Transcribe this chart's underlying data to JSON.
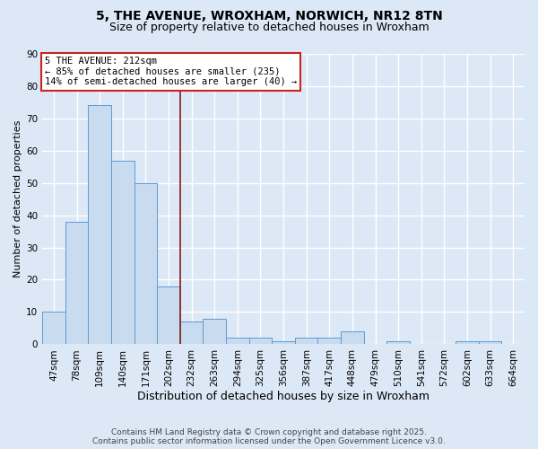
{
  "title1": "5, THE AVENUE, WROXHAM, NORWICH, NR12 8TN",
  "title2": "Size of property relative to detached houses in Wroxham",
  "xlabel": "Distribution of detached houses by size in Wroxham",
  "ylabel": "Number of detached properties",
  "categories": [
    "47sqm",
    "78sqm",
    "109sqm",
    "140sqm",
    "171sqm",
    "202sqm",
    "232sqm",
    "263sqm",
    "294sqm",
    "325sqm",
    "356sqm",
    "387sqm",
    "417sqm",
    "448sqm",
    "479sqm",
    "510sqm",
    "541sqm",
    "572sqm",
    "602sqm",
    "633sqm",
    "664sqm"
  ],
  "values": [
    10,
    38,
    74,
    57,
    50,
    18,
    7,
    8,
    2,
    2,
    1,
    2,
    2,
    4,
    0,
    1,
    0,
    0,
    1,
    1,
    0
  ],
  "bar_color": "#c9dcef",
  "bar_edge_color": "#5b9bd5",
  "fig_facecolor": "#dce8f5",
  "ax_facecolor": "#dce8f5",
  "grid_color": "#ffffff",
  "vline_x": 5.5,
  "vline_color": "#8b1a1a",
  "annotation_text": "5 THE AVENUE: 212sqm\n← 85% of detached houses are smaller (235)\n14% of semi-detached houses are larger (40) →",
  "annotation_box_edgecolor": "#cc2222",
  "ylim": [
    0,
    90
  ],
  "yticks": [
    0,
    10,
    20,
    30,
    40,
    50,
    60,
    70,
    80,
    90
  ],
  "footnote": "Contains HM Land Registry data © Crown copyright and database right 2025.\nContains public sector information licensed under the Open Government Licence v3.0.",
  "title_fontsize": 10,
  "subtitle_fontsize": 9,
  "xlabel_fontsize": 9,
  "ylabel_fontsize": 8,
  "tick_fontsize": 7.5,
  "annotation_fontsize": 7.5,
  "footnote_fontsize": 6.5
}
